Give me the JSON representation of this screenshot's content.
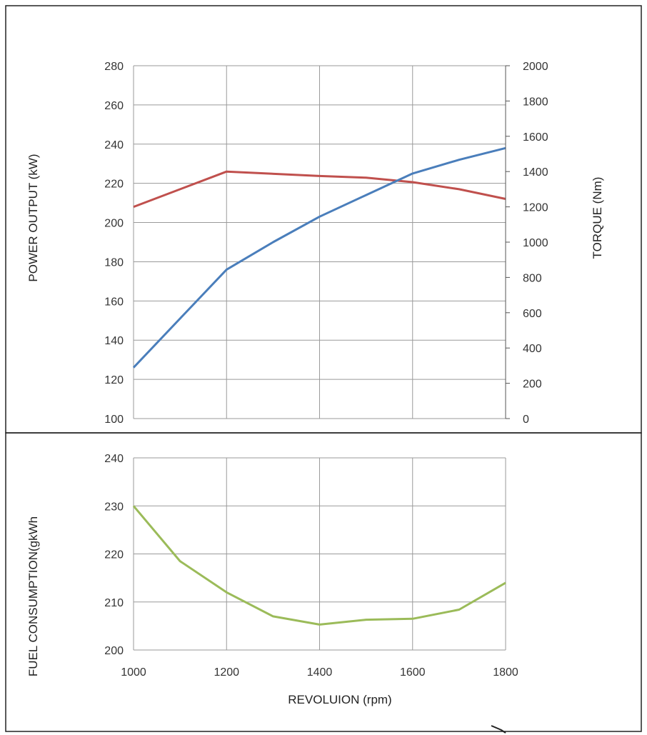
{
  "chart_data": [
    {
      "type": "line",
      "title": "",
      "xlabel": "",
      "ylabel": "POWER OUTPUT (kW)",
      "y2label": "TORQUE (Nm)",
      "xlim": [
        1000,
        1800
      ],
      "ylim": [
        100,
        280
      ],
      "y2lim": [
        0,
        2000
      ],
      "xticks": [
        1000,
        1200,
        1400,
        1600,
        1800
      ],
      "yticks": [
        "100",
        "120",
        "140",
        "160",
        "180",
        "200",
        "220",
        "240",
        "260",
        "280"
      ],
      "y2ticks": [
        "0",
        "200",
        "400",
        "600",
        "800",
        "1000",
        "1200",
        "1400",
        "1600",
        "1800",
        "2000"
      ],
      "grid": true,
      "legend": "none",
      "series": [
        {
          "axis": "y2",
          "color": "#c0504d",
          "x": [
            1000,
            1200,
            1400,
            1500,
            1600,
            1700,
            1800
          ],
          "values": [
            1200,
            1400,
            1375,
            1365,
            1340,
            1300,
            1245
          ]
        },
        {
          "axis": "y",
          "color": "#4a7ebb",
          "x": [
            1000,
            1100,
            1200,
            1300,
            1400,
            1500,
            1600,
            1700,
            1800
          ],
          "values": [
            126,
            151,
            176,
            190,
            203,
            214,
            225,
            232,
            238
          ]
        }
      ]
    },
    {
      "type": "line",
      "title": "",
      "xlabel": "REVOLUION (rpm)",
      "ylabel": "FUEL CONSUMPTION(gkWh",
      "xlim": [
        1000,
        1800
      ],
      "ylim": [
        200,
        240
      ],
      "xticks": [
        "1000",
        "1200",
        "1400",
        "1600",
        "1800"
      ],
      "yticks": [
        "200",
        "210",
        "220",
        "230",
        "240"
      ],
      "grid": true,
      "legend": "none",
      "series": [
        {
          "axis": "y",
          "color": "#9bbb59",
          "x": [
            1000,
            1100,
            1200,
            1300,
            1400,
            1500,
            1600,
            1700,
            1800
          ],
          "values": [
            230,
            218.5,
            212,
            207,
            205.3,
            206.3,
            206.5,
            208.4,
            214
          ]
        }
      ]
    }
  ]
}
